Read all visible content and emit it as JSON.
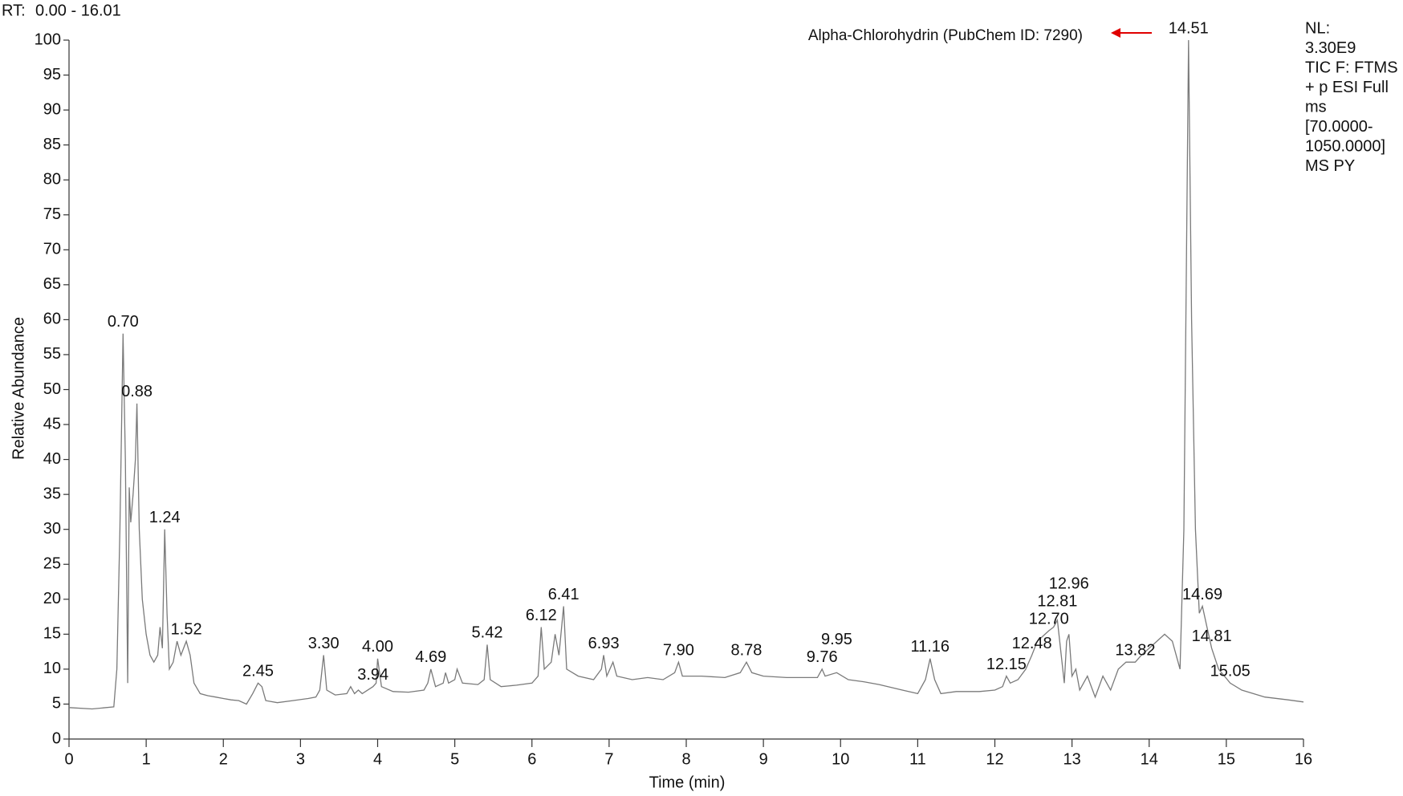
{
  "chart_data": {
    "type": "line",
    "rt_label": "RT:",
    "rt_range": "0.00 - 16.01",
    "info": [
      "NL:",
      "3.30E9",
      "TIC F: FTMS",
      "+ p ESI Full",
      "ms",
      "[70.0000-",
      "1050.0000]",
      "MS PY"
    ],
    "xlabel": "Time (min)",
    "ylabel": "Relative Abundance",
    "annotation": "Alpha-Chlorohydrin (PubChem ID: 7290)",
    "annotation_color": "#e00000",
    "xlim": [
      0,
      16
    ],
    "ylim": [
      0,
      100
    ],
    "xticks": [
      0,
      1,
      2,
      3,
      4,
      5,
      6,
      7,
      8,
      9,
      10,
      11,
      12,
      13,
      14,
      15,
      16
    ],
    "yticks": [
      0,
      5,
      10,
      15,
      20,
      25,
      30,
      35,
      40,
      45,
      50,
      55,
      60,
      65,
      70,
      75,
      80,
      85,
      90,
      95,
      100
    ],
    "x": [
      0,
      0.3,
      0.58,
      0.62,
      0.66,
      0.7,
      0.73,
      0.76,
      0.78,
      0.8,
      0.83,
      0.86,
      0.88,
      0.91,
      0.95,
      1.0,
      1.05,
      1.1,
      1.15,
      1.18,
      1.21,
      1.24,
      1.27,
      1.3,
      1.35,
      1.4,
      1.45,
      1.52,
      1.57,
      1.62,
      1.7,
      1.8,
      1.9,
      2.0,
      2.1,
      2.2,
      2.3,
      2.38,
      2.45,
      2.5,
      2.55,
      2.7,
      2.9,
      3.1,
      3.2,
      3.25,
      3.3,
      3.34,
      3.45,
      3.6,
      3.65,
      3.7,
      3.75,
      3.8,
      3.94,
      3.98,
      4.0,
      4.05,
      4.2,
      4.4,
      4.6,
      4.65,
      4.69,
      4.75,
      4.85,
      4.88,
      4.92,
      5.0,
      5.03,
      5.1,
      5.3,
      5.38,
      5.42,
      5.46,
      5.6,
      5.8,
      6.0,
      6.08,
      6.12,
      6.16,
      6.25,
      6.3,
      6.35,
      6.41,
      6.45,
      6.6,
      6.8,
      6.9,
      6.93,
      6.97,
      7.05,
      7.1,
      7.3,
      7.5,
      7.7,
      7.85,
      7.9,
      7.95,
      8.2,
      8.5,
      8.7,
      8.78,
      8.85,
      9.0,
      9.3,
      9.5,
      9.7,
      9.76,
      9.8,
      9.95,
      10.1,
      10.3,
      10.5,
      10.8,
      11.0,
      11.1,
      11.16,
      11.22,
      11.3,
      11.5,
      11.8,
      12.0,
      12.1,
      12.15,
      12.2,
      12.3,
      12.4,
      12.48,
      12.55,
      12.65,
      12.7,
      12.76,
      12.81,
      12.86,
      12.9,
      12.93,
      12.96,
      13.0,
      13.05,
      13.1,
      13.2,
      13.3,
      13.4,
      13.5,
      13.6,
      13.7,
      13.82,
      13.9,
      14.0,
      14.1,
      14.2,
      14.3,
      14.4,
      14.45,
      14.51,
      14.55,
      14.6,
      14.65,
      14.69,
      14.75,
      14.81,
      14.9,
      15.05,
      15.2,
      15.5,
      15.8,
      16.0
    ],
    "series": [
      {
        "color": "#7a7a7a",
        "values": [
          4.5,
          4.3,
          4.6,
          10,
          30,
          58,
          40,
          8,
          36,
          31,
          35,
          40,
          48,
          30,
          20,
          15,
          12,
          11,
          12,
          16,
          13,
          30,
          18,
          10,
          11,
          14,
          12,
          14,
          12,
          8,
          6.5,
          6.2,
          6,
          5.8,
          5.6,
          5.5,
          5,
          6.5,
          8,
          7.5,
          5.5,
          5.2,
          5.5,
          5.8,
          6,
          7,
          12,
          7,
          6.3,
          6.5,
          7.5,
          6.5,
          7,
          6.5,
          7.5,
          8,
          11.5,
          7.5,
          6.8,
          6.7,
          7,
          8,
          10,
          7.5,
          8,
          9.5,
          8,
          8.5,
          10,
          8,
          7.8,
          8.5,
          13.5,
          8.5,
          7.5,
          7.7,
          8,
          9,
          16,
          10,
          11,
          15,
          12,
          19,
          10,
          9,
          8.5,
          10,
          12,
          9,
          11,
          9,
          8.5,
          8.8,
          8.5,
          9.5,
          11,
          9,
          9,
          8.8,
          9.5,
          11,
          9.5,
          9,
          8.8,
          8.8,
          8.8,
          10,
          9,
          9.5,
          8.5,
          8.2,
          7.8,
          7,
          6.5,
          8.5,
          11.5,
          8.5,
          6.5,
          6.8,
          6.8,
          7,
          7.5,
          9,
          8,
          8.5,
          10,
          12,
          14,
          15,
          15.5,
          16,
          17,
          12,
          8,
          14,
          15,
          9,
          10,
          7,
          9,
          6,
          9,
          7,
          10,
          11,
          11,
          12,
          13,
          14,
          15,
          14,
          10,
          30,
          100,
          60,
          30,
          18,
          19,
          16,
          13,
          10,
          8,
          7,
          6,
          5.6,
          5.3
        ]
      }
    ],
    "peaks": [
      {
        "x": 0.7,
        "y": 58,
        "label": "0.70"
      },
      {
        "x": 0.88,
        "y": 48,
        "label": "0.88"
      },
      {
        "x": 1.24,
        "y": 30,
        "label": "1.24"
      },
      {
        "x": 1.52,
        "y": 14,
        "label": "1.52"
      },
      {
        "x": 2.45,
        "y": 8,
        "label": "2.45"
      },
      {
        "x": 3.3,
        "y": 12,
        "label": "3.30"
      },
      {
        "x": 3.94,
        "y": 7.5,
        "label": "3.94"
      },
      {
        "x": 4.0,
        "y": 11.5,
        "label": "4.00"
      },
      {
        "x": 4.69,
        "y": 10,
        "label": "4.69"
      },
      {
        "x": 5.42,
        "y": 13.5,
        "label": "5.42"
      },
      {
        "x": 6.12,
        "y": 16,
        "label": "6.12"
      },
      {
        "x": 6.41,
        "y": 19,
        "label": "6.41"
      },
      {
        "x": 6.93,
        "y": 12,
        "label": "6.93"
      },
      {
        "x": 7.9,
        "y": 11,
        "label": "7.90"
      },
      {
        "x": 8.78,
        "y": 11,
        "label": "8.78"
      },
      {
        "x": 9.76,
        "y": 10,
        "label": "9.76"
      },
      {
        "x": 9.95,
        "y": 9.5,
        "label": "9.95"
      },
      {
        "x": 11.16,
        "y": 11.5,
        "label": "11.16"
      },
      {
        "x": 12.15,
        "y": 9,
        "label": "12.15"
      },
      {
        "x": 12.48,
        "y": 12,
        "label": "12.48"
      },
      {
        "x": 12.7,
        "y": 15.5,
        "label": "12.70"
      },
      {
        "x": 12.81,
        "y": 17,
        "label": "12.81"
      },
      {
        "x": 12.96,
        "y": 15,
        "label": "12.96"
      },
      {
        "x": 13.82,
        "y": 11,
        "label": "13.82"
      },
      {
        "x": 14.51,
        "y": 100,
        "label": "14.51"
      },
      {
        "x": 14.69,
        "y": 19,
        "label": "14.69"
      },
      {
        "x": 14.81,
        "y": 13,
        "label": "14.81"
      },
      {
        "x": 15.05,
        "y": 8,
        "label": "15.05"
      }
    ]
  }
}
